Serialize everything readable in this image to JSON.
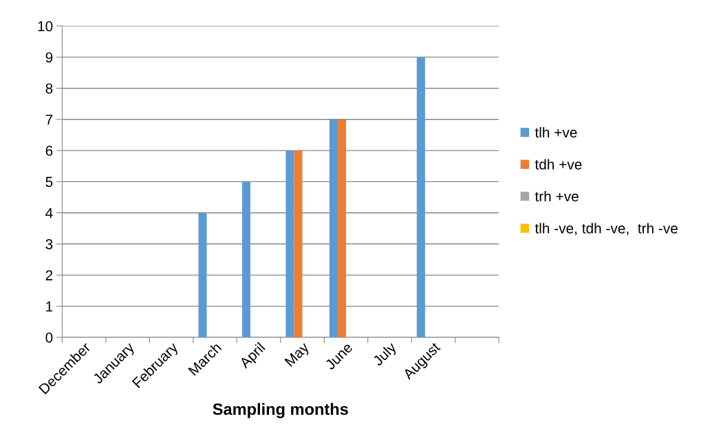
{
  "chart_data": {
    "type": "bar",
    "xlabel": "Sampling months",
    "categories": [
      "December",
      "January",
      "February",
      "March",
      "April",
      "May",
      "June",
      "July",
      "August",
      null
    ],
    "series": [
      {
        "name": "tlh +ve",
        "color": "#5b9bd5",
        "values": [
          0,
          0,
          0,
          4,
          5,
          6,
          7,
          0,
          9,
          0
        ]
      },
      {
        "name": "tdh +ve",
        "color": "#ed7d31",
        "values": [
          0,
          0,
          0,
          0,
          0,
          6,
          7,
          0,
          0,
          0
        ]
      },
      {
        "name": "trh +ve",
        "color": "#a5a5a5",
        "values": [
          0,
          0,
          0,
          0,
          0,
          0,
          0,
          0,
          0,
          0
        ]
      },
      {
        "name": "tlh -ve, tdh -ve,  trh -ve",
        "color": "#ffc000",
        "values": [
          0,
          0,
          0,
          0,
          0,
          0,
          0,
          0,
          0,
          0
        ]
      }
    ],
    "ylim": [
      0,
      10
    ],
    "yticks": [
      0,
      1,
      2,
      3,
      4,
      5,
      6,
      7,
      8,
      9,
      10
    ],
    "grid": "y",
    "legend": "right"
  }
}
